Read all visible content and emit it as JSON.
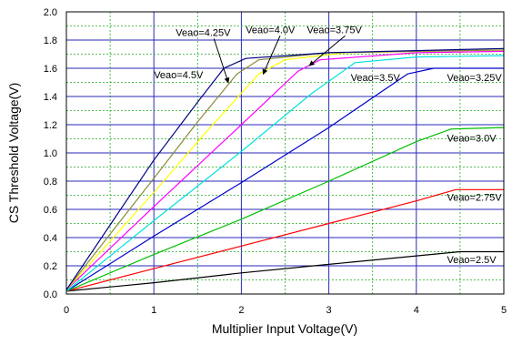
{
  "chart_data": {
    "type": "line",
    "xlabel": "Multiplier Input Voltage(V)",
    "ylabel": "CS Threshold Voltage(V)",
    "xlim": [
      0,
      5
    ],
    "ylim": [
      0,
      2.0
    ],
    "x_ticks": [
      "0",
      "1",
      "2",
      "3",
      "4",
      "5"
    ],
    "y_ticks": [
      "0.0",
      "0.2",
      "0.4",
      "0.6",
      "0.8",
      "1.0",
      "1.2",
      "1.4",
      "1.6",
      "1.8",
      "2.0"
    ],
    "grid": {
      "major": true,
      "minor": true,
      "major_color": "#2a2ab8",
      "minor_color": "#22aa22"
    },
    "series": [
      {
        "name": "Veao=2.5V",
        "color": "#000000",
        "points": [
          [
            0,
            0.02
          ],
          [
            1,
            0.08
          ],
          [
            2,
            0.15
          ],
          [
            3,
            0.21
          ],
          [
            4,
            0.27
          ],
          [
            4.5,
            0.3
          ],
          [
            5,
            0.3
          ]
        ]
      },
      {
        "name": "Veao=2.75V",
        "color": "#ff0000",
        "points": [
          [
            0,
            0.02
          ],
          [
            1,
            0.18
          ],
          [
            2,
            0.34
          ],
          [
            3,
            0.5
          ],
          [
            4,
            0.66
          ],
          [
            4.45,
            0.74
          ],
          [
            5,
            0.74
          ]
        ]
      },
      {
        "name": "Veao=3.0V",
        "color": "#00c000",
        "points": [
          [
            0,
            0.02
          ],
          [
            1,
            0.28
          ],
          [
            2,
            0.53
          ],
          [
            3,
            0.8
          ],
          [
            4,
            1.08
          ],
          [
            4.4,
            1.17
          ],
          [
            5,
            1.18
          ]
        ]
      },
      {
        "name": "Veao=3.25V",
        "color": "#0000cc",
        "points": [
          [
            0,
            0.02
          ],
          [
            1,
            0.41
          ],
          [
            2,
            0.79
          ],
          [
            3,
            1.18
          ],
          [
            3.9,
            1.56
          ],
          [
            4.2,
            1.6
          ],
          [
            5,
            1.6
          ]
        ]
      },
      {
        "name": "Veao=3.5V",
        "color": "#00e0e0",
        "points": [
          [
            0,
            0.02
          ],
          [
            1,
            0.52
          ],
          [
            2,
            1.01
          ],
          [
            2.8,
            1.42
          ],
          [
            3.3,
            1.64
          ],
          [
            4,
            1.68
          ],
          [
            5,
            1.69
          ]
        ]
      },
      {
        "name": "Veao=3.75V",
        "color": "#ff00ff",
        "points": [
          [
            0,
            0.03
          ],
          [
            1,
            0.62
          ],
          [
            2,
            1.2
          ],
          [
            2.65,
            1.58
          ],
          [
            2.9,
            1.66
          ],
          [
            4,
            1.71
          ],
          [
            5,
            1.72
          ]
        ]
      },
      {
        "name": "Veao=4.0V",
        "color": "#ffff00",
        "points": [
          [
            0,
            0.03
          ],
          [
            1,
            0.72
          ],
          [
            1.6,
            1.15
          ],
          [
            2.2,
            1.56
          ],
          [
            2.5,
            1.66
          ],
          [
            3.2,
            1.71
          ],
          [
            5,
            1.73
          ]
        ]
      },
      {
        "name": "Veao=4.25V",
        "color": "#8b8b3a",
        "points": [
          [
            0,
            0.03
          ],
          [
            1,
            0.82
          ],
          [
            1.5,
            1.22
          ],
          [
            1.95,
            1.56
          ],
          [
            2.2,
            1.66
          ],
          [
            3,
            1.71
          ],
          [
            5,
            1.73
          ]
        ]
      },
      {
        "name": "Veao=4.5V",
        "color": "#000080",
        "points": [
          [
            0,
            0.03
          ],
          [
            1,
            0.95
          ],
          [
            1.5,
            1.36
          ],
          [
            1.8,
            1.6
          ],
          [
            2.05,
            1.67
          ],
          [
            3,
            1.71
          ],
          [
            5,
            1.74
          ]
        ]
      }
    ],
    "annotations": [
      {
        "text": "Veao=2.5V",
        "x": 4.35,
        "y": 0.22,
        "arrow": false
      },
      {
        "text": "Veao=2.75V",
        "x": 4.35,
        "y": 0.66,
        "arrow": false
      },
      {
        "text": "Veao=3.0V",
        "x": 4.35,
        "y": 1.08,
        "arrow": false
      },
      {
        "text": "Veao=3.25V",
        "x": 4.35,
        "y": 1.51,
        "arrow": false
      },
      {
        "text": "Veao=3.5V",
        "x": 3.25,
        "y": 1.51,
        "arrow": false
      },
      {
        "text": "Veao=3.75V",
        "x": 2.75,
        "y": 1.85,
        "arrow": true,
        "to": [
          2.78,
          1.62
        ]
      },
      {
        "text": "Veao=4.0V",
        "x": 2.05,
        "y": 1.85,
        "arrow": true,
        "to": [
          2.25,
          1.56
        ]
      },
      {
        "text": "Veao=4.25V",
        "x": 1.25,
        "y": 1.83,
        "arrow": true,
        "to": [
          1.85,
          1.5
        ]
      },
      {
        "text": "Veao=4.5V",
        "x": 1.0,
        "y": 1.53,
        "arrow": false
      }
    ]
  }
}
